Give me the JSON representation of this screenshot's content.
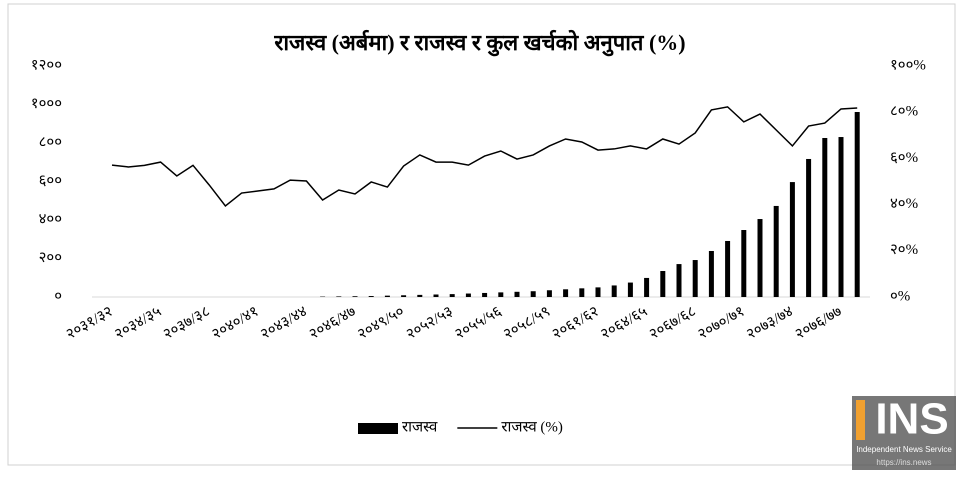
{
  "chart_data": {
    "type": "bar_line",
    "title": "राजस्व (अर्बमा) र राजस्व र कुल खर्चको अनुपात (%)",
    "categories": [
      "२०३१/३२",
      null,
      null,
      "२०३४/३५",
      null,
      null,
      "२०३७/३८",
      null,
      null,
      "२०४०/४१",
      null,
      null,
      "२०४३/४४",
      null,
      null,
      "२०४६/४७",
      null,
      null,
      "२०४९/५०",
      null,
      null,
      "२०५२/५३",
      null,
      null,
      "२०५५/५६",
      null,
      null,
      "२०५८/५९",
      null,
      null,
      "२०६१/६२",
      null,
      null,
      "२०६४/६५",
      null,
      null,
      "२०६७/६८",
      null,
      null,
      "२०७०/७१",
      null,
      null,
      "२०७३/७४",
      null,
      null,
      "२०७६/७७",
      null
    ],
    "series": [
      {
        "name": "राजस्व",
        "color": "#000000",
        "kind": "bar",
        "values": [
          null,
          null,
          null,
          null,
          null,
          null,
          null,
          null,
          null,
          null,
          null,
          null,
          null,
          2,
          3,
          4,
          5,
          7,
          9,
          11,
          13,
          15,
          18,
          21,
          24,
          27,
          30,
          35,
          40,
          45,
          50,
          60,
          75,
          99,
          135,
          171,
          192,
          239,
          291,
          348,
          405,
          473,
          597,
          717,
          826,
          831,
          961
        ]
      },
      {
        "name": "राजस्व (%)",
        "color": "#000000",
        "kind": "line",
        "axis": "y2",
        "values": [
          57.1,
          56.3,
          57,
          58.4,
          52.4,
          57,
          48.5,
          39.4,
          45,
          45.9,
          46.8,
          50.6,
          50.2,
          42,
          46.3,
          44.6,
          49.8,
          47.6,
          56.7,
          61.5,
          58.4,
          58.4,
          57.1,
          61,
          63.2,
          59.7,
          61.5,
          65.4,
          68.4,
          67.1,
          63.6,
          64.1,
          65.4,
          64.1,
          68.4,
          66.2,
          71,
          81,
          82.3,
          75.8,
          79.2,
          72.3,
          65.4,
          74,
          75.3,
          81.4,
          81.8
        ]
      }
    ],
    "ylim": [
      0,
      1200
    ],
    "yticks": [
      {
        "value": 0,
        "label": "०"
      },
      {
        "value": 200,
        "label": "२००"
      },
      {
        "value": 400,
        "label": "४००"
      },
      {
        "value": 600,
        "label": "६००"
      },
      {
        "value": 800,
        "label": "८००"
      },
      {
        "value": 1000,
        "label": "१०००"
      },
      {
        "value": 1200,
        "label": "१२००"
      }
    ],
    "y2lim": [
      0,
      100
    ],
    "y2ticks": [
      {
        "value": 0,
        "label": "०%"
      },
      {
        "value": 20,
        "label": "२०%"
      },
      {
        "value": 40,
        "label": "४०%"
      },
      {
        "value": 60,
        "label": "६०%"
      },
      {
        "value": 80,
        "label": "८०%"
      },
      {
        "value": 100,
        "label": "१००%"
      }
    ],
    "legend": "bottom"
  },
  "watermark": {
    "logo": "INS",
    "name": "Independent News Service",
    "url": "https://ins.news"
  }
}
